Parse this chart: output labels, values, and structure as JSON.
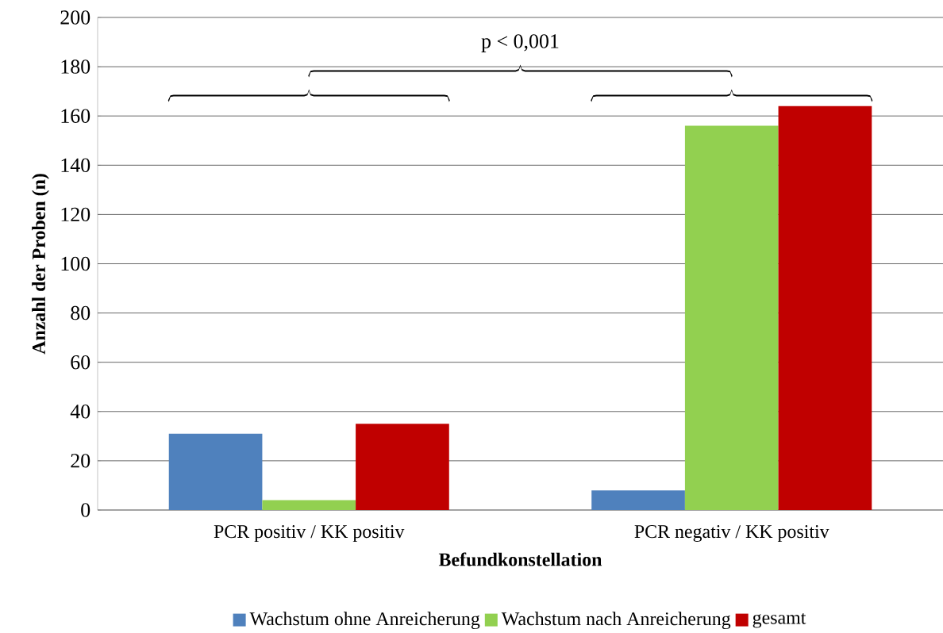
{
  "chart_data": {
    "type": "bar",
    "xlabel": "Befundkonstellation",
    "ylabel": "Anzahl der Proben (n)",
    "categories": [
      "PCR positiv / KK positiv",
      "PCR negativ / KK positiv"
    ],
    "series": [
      {
        "name": "Wachstum ohne Anreicherung",
        "color": "#4f81bd",
        "values": [
          31,
          8
        ]
      },
      {
        "name": "Wachstum nach Anreicherung",
        "color": "#92d050",
        "values": [
          4,
          156
        ]
      },
      {
        "name": "gesamt",
        "color": "#c00000",
        "values": [
          35,
          164
        ]
      }
    ],
    "ylim": [
      0,
      200
    ],
    "yticks": [
      0,
      20,
      40,
      60,
      80,
      100,
      120,
      140,
      160,
      180,
      200
    ],
    "grid": "y",
    "legend": "bottom",
    "annotations": [
      "p < 0,001"
    ]
  }
}
